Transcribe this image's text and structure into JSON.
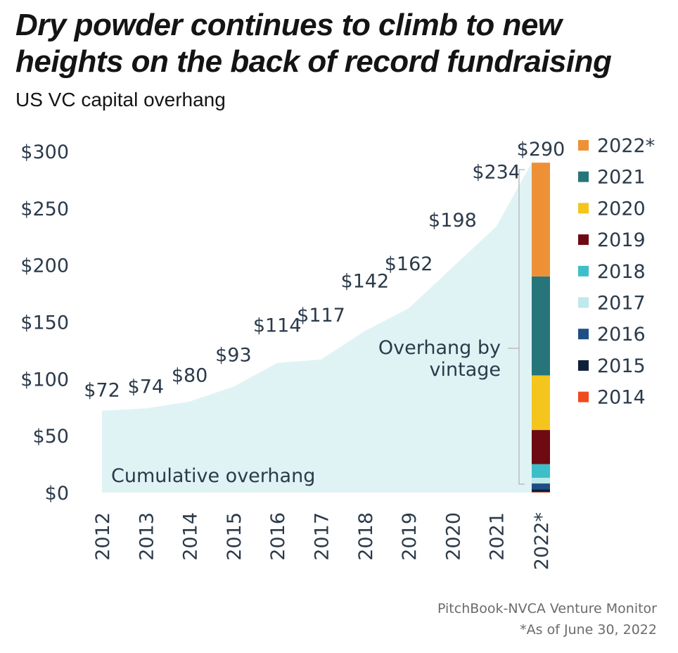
{
  "title": "Dry powder continues to climb to new heights on the back of record fundraising",
  "subtitle": "US VC capital overhang",
  "source": "PitchBook-NVCA Venture Monitor",
  "footnote": "*As of June 30, 2022",
  "chart_data": {
    "type": "area",
    "x": [
      "2012",
      "2013",
      "2014",
      "2015",
      "2016",
      "2017",
      "2018",
      "2019",
      "2020",
      "2021"
    ],
    "values": [
      72,
      74,
      80,
      93,
      114,
      117,
      142,
      162,
      198,
      234
    ],
    "value_labels": [
      "$72",
      "$74",
      "$80",
      "$93",
      "$114",
      "$117",
      "$142",
      "$162",
      "$198",
      "$234"
    ],
    "area_label": "Cumulative overhang",
    "area_color": "#e0f3f4",
    "ylim": [
      0,
      300
    ],
    "yticks": [
      0,
      50,
      100,
      150,
      200,
      250,
      300
    ],
    "ytick_labels": [
      "$0",
      "$50",
      "$100",
      "$150",
      "$200",
      "$250",
      "$300"
    ],
    "grid": false,
    "stacked_bar": {
      "category": "2022*",
      "total": 290,
      "total_label": "$290",
      "bracket_label": "Overhang by vintage",
      "series": [
        {
          "name": "2014",
          "value": 0.5,
          "color": "#f04a1c"
        },
        {
          "name": "2015",
          "value": 2.5,
          "color": "#0d1f3a"
        },
        {
          "name": "2016",
          "value": 5,
          "color": "#1f4e86"
        },
        {
          "name": "2017",
          "value": 5,
          "color": "#bfe9ea"
        },
        {
          "name": "2018",
          "value": 12,
          "color": "#3dbfca"
        },
        {
          "name": "2019",
          "value": 30,
          "color": "#6e0a12"
        },
        {
          "name": "2020",
          "value": 48,
          "color": "#f4c51c"
        },
        {
          "name": "2021",
          "value": 87,
          "color": "#26757b"
        },
        {
          "name": "2022*",
          "value": 100,
          "color": "#ee9136"
        }
      ]
    },
    "legend_placement": "right"
  }
}
